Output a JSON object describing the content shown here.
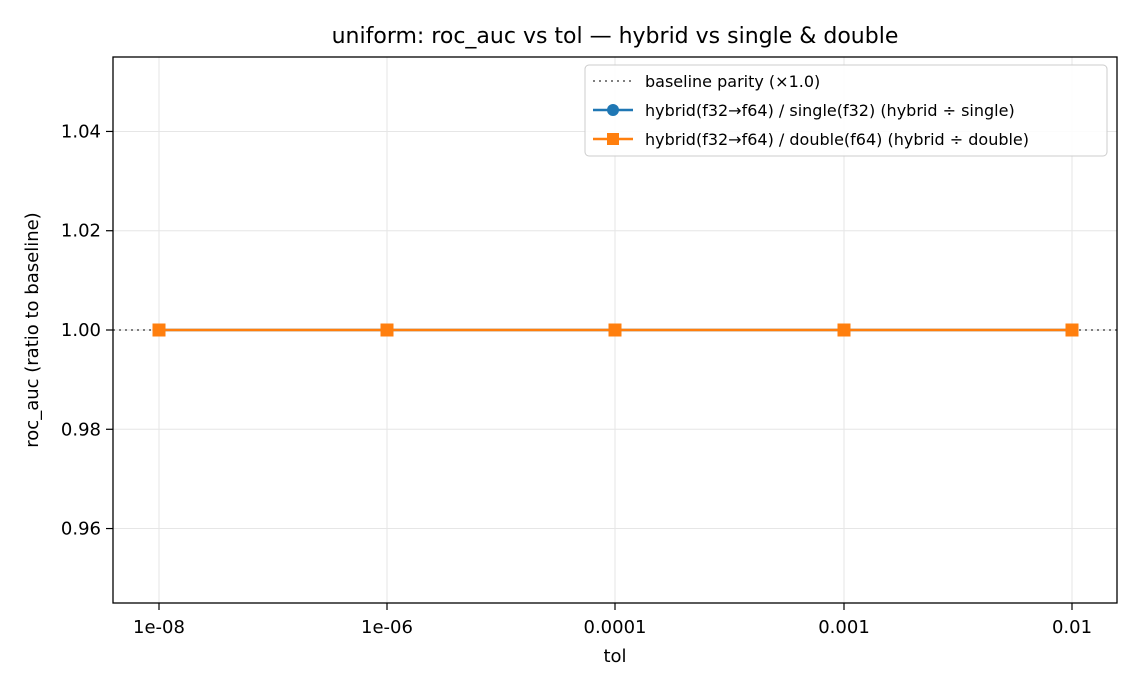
{
  "chart_data": {
    "type": "line",
    "title": "uniform: roc_auc vs tol — hybrid vs single & double",
    "xlabel": "tol",
    "ylabel": "roc_auc (ratio to baseline)",
    "categories": [
      "1e-08",
      "1e-06",
      "0.0001",
      "0.001",
      "0.01"
    ],
    "ylim": [
      0.945,
      1.055
    ],
    "yticks": [
      0.96,
      0.98,
      1.0,
      1.02,
      1.04
    ],
    "ytick_labels": [
      "0.96",
      "0.98",
      "1.00",
      "1.02",
      "1.04"
    ],
    "grid": true,
    "legend_position": "top-right",
    "baseline": {
      "name": "baseline parity (×1.0)",
      "value": 1.0,
      "color": "#808080",
      "style": "dotted"
    },
    "series": [
      {
        "name": "hybrid(f32→f64) / single(f32)  (hybrid ÷ single)",
        "values": [
          1.0,
          1.0,
          1.0,
          1.0,
          1.0
        ],
        "color": "#1f77b4",
        "marker": "circle"
      },
      {
        "name": "hybrid(f32→f64) / double(f64)  (hybrid ÷ double)",
        "values": [
          1.0,
          1.0,
          1.0,
          1.0,
          1.0
        ],
        "color": "#ff7f0e",
        "marker": "square"
      }
    ]
  }
}
